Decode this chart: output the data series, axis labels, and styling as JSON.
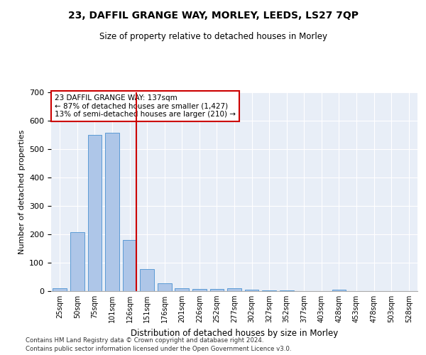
{
  "title": "23, DAFFIL GRANGE WAY, MORLEY, LEEDS, LS27 7QP",
  "subtitle": "Size of property relative to detached houses in Morley",
  "xlabel": "Distribution of detached houses by size in Morley",
  "ylabel": "Number of detached properties",
  "categories": [
    "25sqm",
    "50sqm",
    "75sqm",
    "101sqm",
    "126sqm",
    "151sqm",
    "176sqm",
    "201sqm",
    "226sqm",
    "252sqm",
    "277sqm",
    "302sqm",
    "327sqm",
    "352sqm",
    "377sqm",
    "403sqm",
    "428sqm",
    "453sqm",
    "478sqm",
    "503sqm",
    "528sqm"
  ],
  "values": [
    10,
    207,
    550,
    557,
    180,
    77,
    28,
    10,
    7,
    7,
    10,
    5,
    3,
    2,
    0,
    0,
    5,
    0,
    0,
    0,
    0
  ],
  "bar_color": "#aec6e8",
  "bar_edge_color": "#5b9bd5",
  "vline_x": 4.4,
  "vline_color": "#cc0000",
  "annotation_text": "23 DAFFIL GRANGE WAY: 137sqm\n← 87% of detached houses are smaller (1,427)\n13% of semi-detached houses are larger (210) →",
  "annotation_box_color": "#ffffff",
  "annotation_box_edge": "#cc0000",
  "ylim": [
    0,
    700
  ],
  "yticks": [
    0,
    100,
    200,
    300,
    400,
    500,
    600,
    700
  ],
  "bg_color": "#e8eef7",
  "footer1": "Contains HM Land Registry data © Crown copyright and database right 2024.",
  "footer2": "Contains public sector information licensed under the Open Government Licence v3.0."
}
